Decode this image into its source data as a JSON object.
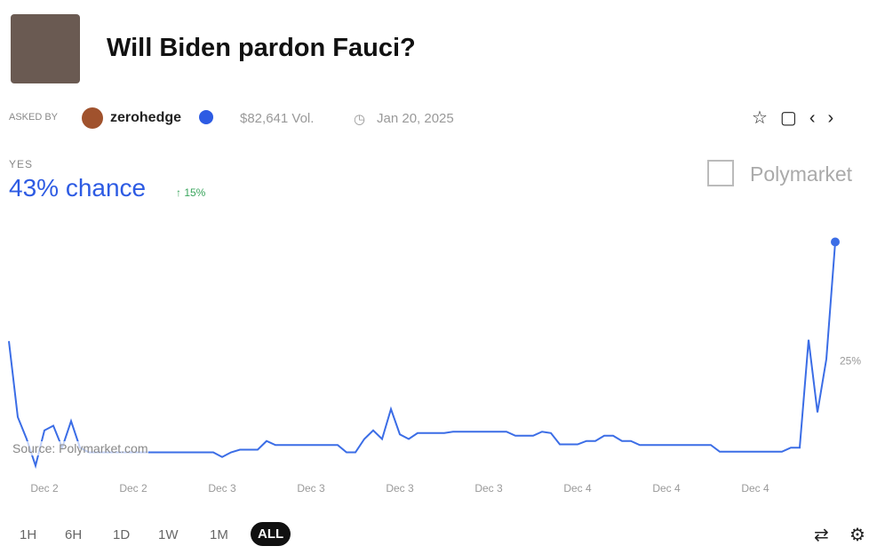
{
  "header": {
    "title": "Will Biden pardon Fauci?",
    "asked_by": "ASKED BY",
    "user": "zerohedge",
    "volume": "$82,641 Vol.",
    "date": "Jan 20, 2025"
  },
  "outcome": {
    "label": "YES",
    "chance": "43% chance",
    "change": "↑ 15%"
  },
  "brand": "Polymarket",
  "source": "Source: Polymarket.com",
  "ranges": [
    "1H",
    "6H",
    "1D",
    "1W",
    "1M",
    "ALL"
  ],
  "chart_data": {
    "type": "line",
    "color": "#3b6de6",
    "categories": [
      null,
      null,
      null,
      null,
      "Dec 2",
      null,
      null,
      null,
      null,
      null,
      null,
      null,
      null,
      null,
      "Dec 2",
      null,
      null,
      null,
      null,
      null,
      null,
      null,
      null,
      null,
      "Dec 3",
      null,
      null,
      null,
      null,
      null,
      null,
      null,
      null,
      null,
      "Dec 3",
      null,
      null,
      null,
      null,
      null,
      null,
      null,
      null,
      null,
      "Dec 3",
      null,
      null,
      null,
      null,
      null,
      null,
      null,
      null,
      null,
      "Dec 3",
      null,
      null,
      null,
      null,
      null,
      null,
      null,
      null,
      null,
      "Dec 4",
      null,
      null,
      null,
      null,
      null,
      null,
      null,
      null,
      null,
      "Dec 4",
      null,
      null,
      null,
      null,
      null,
      null,
      null,
      null,
      null,
      "Dec 4",
      null,
      null,
      null,
      null,
      null,
      null,
      null,
      null,
      null
    ],
    "values": [
      28.1,
      16.7,
      13.4,
      9.4,
      14.7,
      15.4,
      12.1,
      16.1,
      12.1,
      11.4,
      11.4,
      11.4,
      11.4,
      11.4,
      11.4,
      11.4,
      11.4,
      11.4,
      11.4,
      11.4,
      11.4,
      11.4,
      11.4,
      11.4,
      10.7,
      11.4,
      11.8,
      11.8,
      11.8,
      13.1,
      12.5,
      12.5,
      12.5,
      12.5,
      12.5,
      12.5,
      12.5,
      12.5,
      11.4,
      11.4,
      13.4,
      14.7,
      13.4,
      17.9,
      14.1,
      13.4,
      14.3,
      14.3,
      14.3,
      14.3,
      14.5,
      14.5,
      14.5,
      14.5,
      14.5,
      14.5,
      14.5,
      13.9,
      13.9,
      13.9,
      14.5,
      14.3,
      12.6,
      12.6,
      12.6,
      13.1,
      13.1,
      13.9,
      13.9,
      13.1,
      13.1,
      12.5,
      12.5,
      12.5,
      12.5,
      12.5,
      12.5,
      12.5,
      12.5,
      12.5,
      11.5,
      11.5,
      11.5,
      11.5,
      11.5,
      11.5,
      11.5,
      11.5,
      12.1,
      12.1,
      28.3,
      17.4,
      25.4,
      43
    ],
    "ylim": [
      8,
      46
    ],
    "yticks": [
      {
        "value": 25,
        "label": "25%"
      }
    ],
    "grid": false
  }
}
